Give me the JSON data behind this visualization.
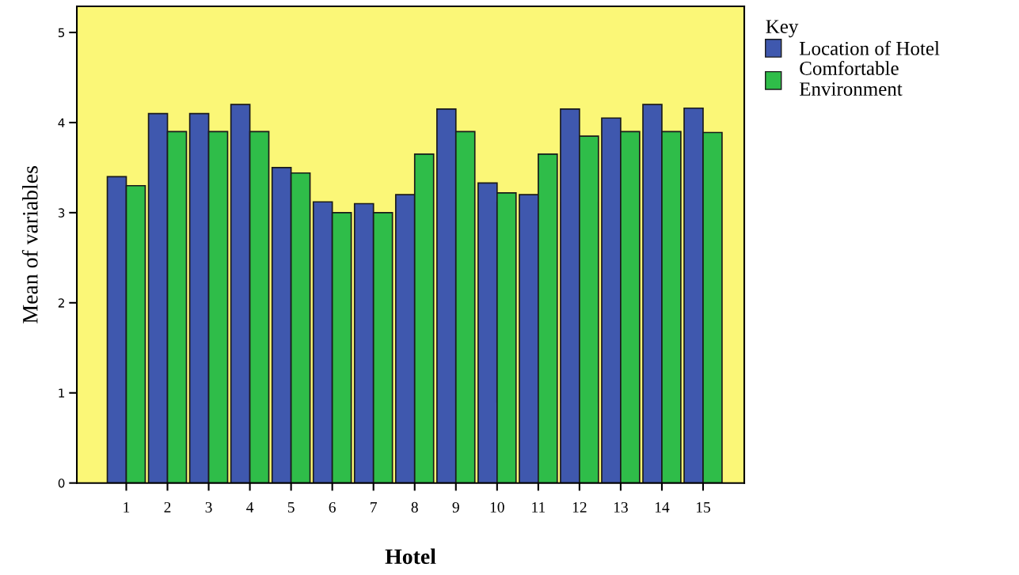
{
  "chart_data": {
    "type": "bar",
    "xlabel": "Hotel",
    "ylabel": "Mean of variables",
    "legend_title": "Key",
    "categories": [
      "1",
      "2",
      "3",
      "4",
      "5",
      "6",
      "7",
      "8",
      "9",
      "10",
      "11",
      "12",
      "13",
      "14",
      "15"
    ],
    "series": [
      {
        "name": "Location of Hotel",
        "color": "#3f58ae",
        "values": [
          3.4,
          4.1,
          4.1,
          4.2,
          3.5,
          3.12,
          3.1,
          3.2,
          4.15,
          3.33,
          3.2,
          4.15,
          4.05,
          4.2,
          4.16
        ]
      },
      {
        "name": "Comfortable\nEnvironment",
        "color": "#2fbd49",
        "values": [
          3.3,
          3.9,
          3.9,
          3.9,
          3.44,
          3.0,
          3.0,
          3.65,
          3.9,
          3.22,
          3.65,
          3.85,
          3.9,
          3.9,
          3.89
        ]
      }
    ],
    "ylim": [
      0,
      5.29
    ],
    "yticks": [
      0,
      1,
      2,
      3,
      4,
      5
    ],
    "grid": false,
    "legend": "top right"
  }
}
